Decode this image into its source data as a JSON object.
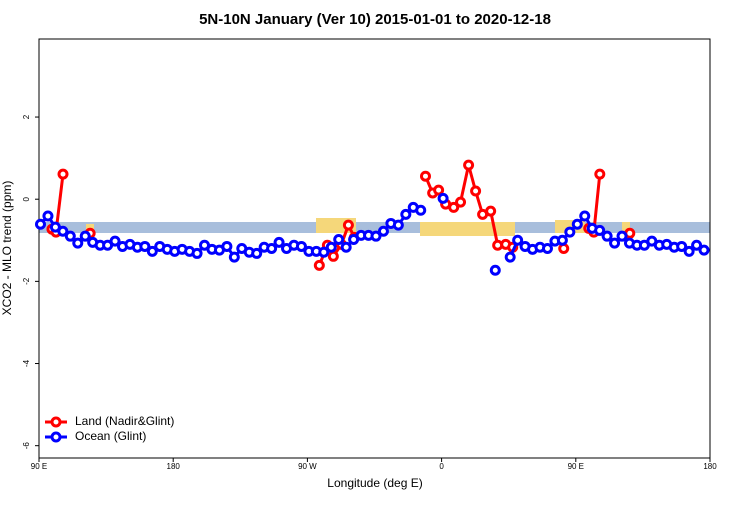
{
  "chart_data": {
    "type": "line",
    "title": "5N-10N January (Ver 10)   2015-01-01 to 2020-12-18",
    "xlabel": "Longitude (deg E)",
    "ylabel": "XCO2 - MLO trend (ppm)",
    "xlim": [
      90,
      540
    ],
    "ylim": [
      -6.3,
      3.9
    ],
    "xticks": [
      {
        "value": 90,
        "label": "90 E"
      },
      180,
      {
        "value": 270,
        "label": "90 W"
      },
      {
        "value": 360,
        "label": "0"
      },
      {
        "value": 450,
        "label": "90 E"
      },
      {
        "value": 540,
        "label": "180"
      }
    ],
    "yticks": [
      -6,
      -4,
      -2,
      0,
      2
    ],
    "legend": "bottom-left",
    "series": [
      {
        "name": "Land (Nadir&Glint)",
        "color": "#ff0000",
        "x": [
          98.7,
          101.4,
          106.1,
          null,
          124.3,
          null,
          278.0,
          283.4,
          287.4,
          292.8,
          297.5,
          301.5,
          null,
          349.2,
          354.0,
          358.0,
          362.7,
          368.1,
          372.7,
          378.1,
          382.8,
          387.5,
          392.9,
          397.6,
          403.0,
          407.7,
          null,
          441.9,
          null,
          458.7,
          462.1,
          466.1,
          null,
          486.2
        ],
        "values": [
          -0.73,
          -0.8,
          0.61,
          null,
          -0.83,
          null,
          -1.61,
          -1.12,
          -1.39,
          -1.1,
          -0.63,
          -0.93,
          null,
          0.56,
          0.15,
          0.22,
          -0.12,
          -0.2,
          -0.07,
          0.83,
          0.2,
          -0.37,
          -0.29,
          -1.12,
          -1.1,
          -1.17,
          null,
          -1.2,
          null,
          -0.71,
          -0.8,
          0.61,
          null,
          -0.83
        ]
      },
      {
        "name": "Ocean (Glint)",
        "color": "#0000ff",
        "x": [
          91,
          96,
          101,
          106,
          111,
          116,
          121,
          126,
          131,
          136,
          141,
          146,
          151,
          156,
          161,
          166,
          171,
          176,
          181,
          186,
          191,
          196,
          201,
          206,
          211,
          216,
          221,
          226,
          231,
          236,
          241,
          246,
          251,
          256,
          261,
          266,
          271,
          276,
          281,
          286,
          291,
          296,
          301,
          306,
          311,
          316,
          321,
          326,
          331,
          336,
          341,
          346,
          351,
          356,
          361,
          366,
          371,
          376,
          381,
          386,
          391,
          396,
          401,
          406,
          411,
          416,
          421,
          426,
          431,
          436,
          441,
          446,
          451,
          456,
          461,
          466,
          471,
          476,
          481,
          486,
          491,
          496,
          501,
          506,
          511,
          516,
          521,
          526,
          531,
          536
        ],
        "values": [
          -0.61,
          -0.41,
          -0.68,
          -0.78,
          -0.9,
          -1.07,
          -0.9,
          -1.05,
          -1.12,
          -1.12,
          -1.02,
          -1.15,
          -1.1,
          -1.17,
          -1.15,
          -1.27,
          -1.15,
          -1.22,
          -1.27,
          -1.22,
          -1.27,
          -1.32,
          -1.12,
          -1.22,
          -1.24,
          -1.15,
          -1.41,
          -1.2,
          -1.29,
          -1.32,
          -1.17,
          -1.2,
          -1.05,
          -1.2,
          -1.12,
          -1.15,
          -1.27,
          -1.27,
          -1.29,
          -1.17,
          -0.98,
          -1.17,
          -0.98,
          -0.88,
          -0.88,
          -0.9,
          -0.78,
          -0.59,
          -0.63,
          -0.37,
          -0.2,
          -0.27,
          null,
          null,
          0.02,
          null,
          null,
          null,
          null,
          null,
          null,
          -1.73,
          null,
          -1.41,
          -1.0,
          -1.15,
          -1.22,
          -1.17,
          -1.2,
          -1.02,
          -1.0,
          -0.8,
          -0.61,
          -0.41,
          -0.71,
          -0.76,
          -0.9,
          -1.07,
          -0.9,
          -1.07,
          -1.12,
          -1.12,
          -1.02,
          -1.12,
          -1.1,
          -1.17,
          -1.15,
          -1.27,
          -1.12,
          -1.24
        ]
      }
    ]
  }
}
